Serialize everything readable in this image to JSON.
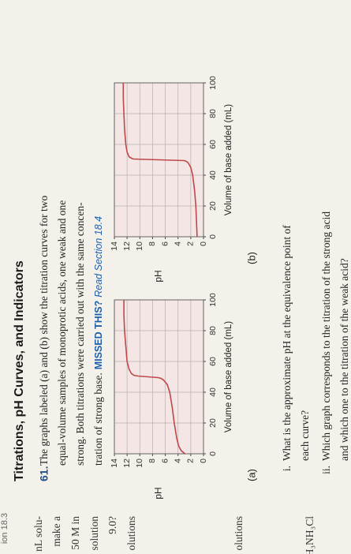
{
  "header": {
    "section": "ion 18.3",
    "title": "Titrations, pH Curves, and Indicators"
  },
  "margin": [
    "nL solu-",
    "make a",
    "50 M in",
    "solution",
    "9.0?",
    "olutions",
    "olutions",
    "H₃NH₃Cl"
  ],
  "problem": {
    "number": "61.",
    "lines": [
      "The graphs labeled (a) and (b) show the titration curves for two",
      "equal-volume samples of monoprotic acids, one weak and one",
      "strong. Both titrations were carried out with the same concen-",
      "tration of strong base."
    ],
    "missed": "MISSED THIS?",
    "read": "Read Section 18.4"
  },
  "chart_data": [
    {
      "type": "line",
      "panel": "(a)",
      "xlabel": "Volume of base added (mL)",
      "ylabel": "pH",
      "color": "#c0474a",
      "grid": true,
      "x": [
        0,
        2,
        5,
        10,
        20,
        30,
        40,
        45,
        48,
        49,
        49.5,
        50,
        50.5,
        51,
        52,
        55,
        60,
        70,
        80,
        90,
        100
      ],
      "values": [
        2.9,
        3.5,
        3.9,
        4.2,
        4.6,
        4.9,
        5.3,
        5.7,
        6.3,
        6.7,
        7.1,
        8.7,
        10.3,
        10.9,
        11.3,
        11.7,
        12,
        12.2,
        12.4,
        12.5,
        12.5
      ],
      "xlim": [
        0,
        100
      ],
      "ylim": [
        0,
        14
      ],
      "xticks": [
        0,
        20,
        40,
        60,
        80,
        100
      ],
      "yticks": [
        0,
        2,
        4,
        6,
        8,
        10,
        12,
        14
      ]
    },
    {
      "type": "line",
      "panel": "(b)",
      "xlabel": "Volume of base added (mL)",
      "ylabel": "pH",
      "color": "#c0474a",
      "grid": true,
      "x": [
        0,
        10,
        20,
        30,
        40,
        45,
        48,
        49,
        49.5,
        50,
        50.5,
        51,
        52,
        55,
        60,
        70,
        80,
        90,
        100
      ],
      "values": [
        1,
        1.1,
        1.2,
        1.4,
        1.7,
        2,
        2.4,
        2.7,
        3,
        7,
        11,
        11.3,
        11.7,
        12,
        12.2,
        12.4,
        12.5,
        12.6,
        12.6
      ],
      "xlim": [
        0,
        100
      ],
      "ylim": [
        0,
        14
      ],
      "xticks": [
        0,
        20,
        40,
        60,
        80,
        100
      ],
      "yticks": [
        0,
        2,
        4,
        6,
        8,
        10,
        12,
        14
      ]
    }
  ],
  "questions": [
    {
      "number": "i.",
      "lines": [
        "What is the approximate pH at the equivalence point of",
        "each curve?"
      ]
    },
    {
      "number": "ii.",
      "lines": [
        "Which graph corresponds to the titration of the strong acid",
        "and which one to the titration of the weak acid?"
      ]
    }
  ]
}
